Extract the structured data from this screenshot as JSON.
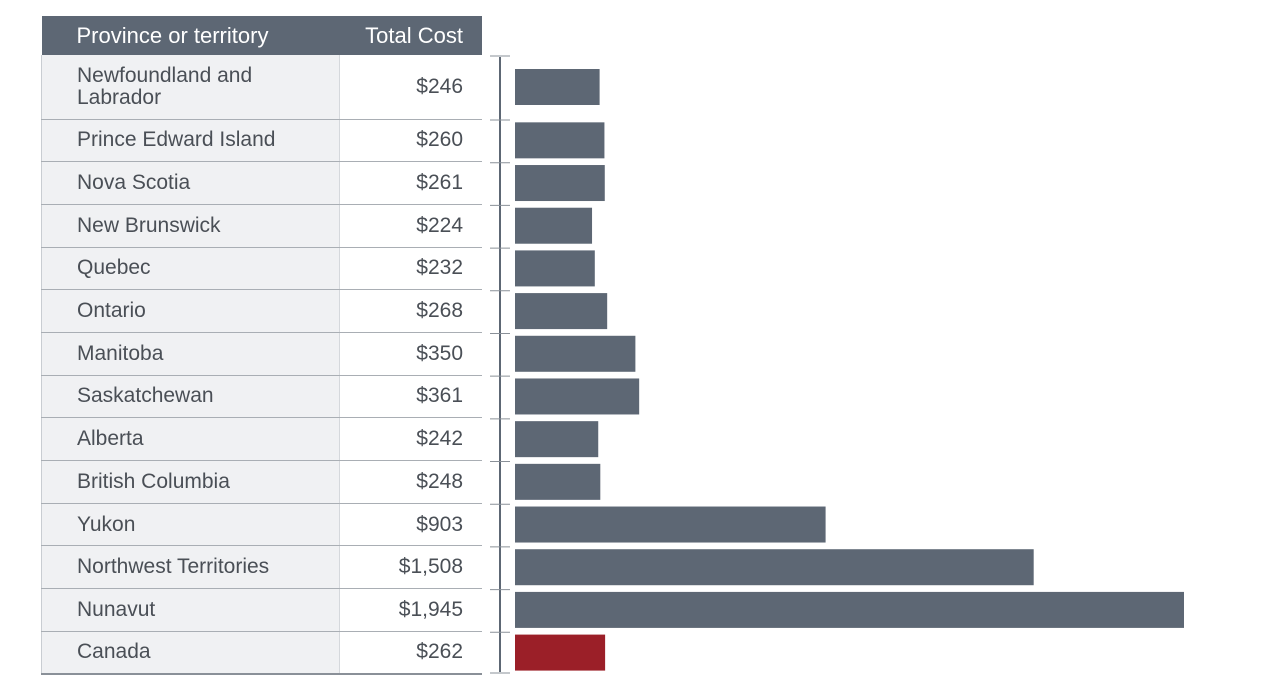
{
  "table": {
    "header": {
      "col1": "Province or territory",
      "col2": "Total Cost"
    }
  },
  "chart_data": {
    "type": "bar",
    "orientation": "horizontal",
    "title": "",
    "xlabel": "",
    "ylabel": "",
    "categories": [
      "Newfoundland and Labrador",
      "Prince Edward Island",
      "Nova Scotia",
      "New Brunswick",
      "Quebec",
      "Ontario",
      "Manitoba",
      "Saskatchewan",
      "Alberta",
      "British Columbia",
      "Yukon",
      "Northwest Territories",
      "Nunavut",
      "Canada"
    ],
    "values": [
      246,
      260,
      261,
      224,
      232,
      268,
      350,
      361,
      242,
      248,
      903,
      1508,
      1945,
      262
    ],
    "value_labels": [
      "$246",
      "$260",
      "$261",
      "$224",
      "$232",
      "$268",
      "$350",
      "$361",
      "$242",
      "$248",
      "$903",
      "$1,508",
      "$1,945",
      "$262"
    ],
    "xlim": [
      0,
      1945
    ],
    "grid": false,
    "bar_color": "#5d6774",
    "highlight_color": "#9b1f28",
    "highlight_category": "Canada"
  }
}
